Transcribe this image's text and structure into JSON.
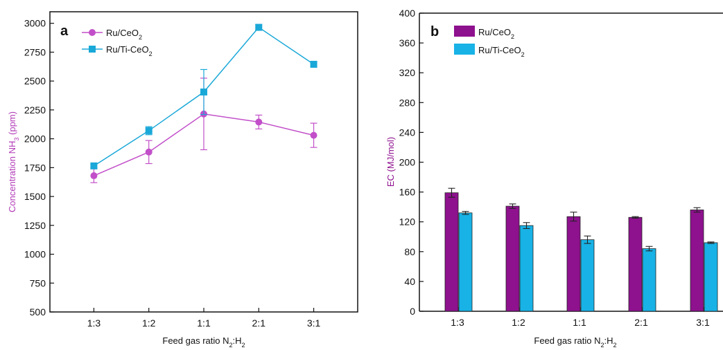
{
  "colors": {
    "magenta": "#c24fc9",
    "magenta_bar": "#8e118e",
    "cyan": "#1aa8d8",
    "cyan_bar": "#18b2e6",
    "axis": "#111111"
  },
  "chart_data": [
    {
      "type": "line",
      "panel_label": "a",
      "categories": [
        "1:3",
        "1:2",
        "1:1",
        "2:1",
        "3:1"
      ],
      "xlabel_parts": [
        "Feed gas ratio N",
        "2",
        ":H",
        "2"
      ],
      "ylabel_parts": [
        "Concentration NH",
        "3",
        " (ppm)"
      ],
      "ylim": [
        500,
        3100
      ],
      "yticks": [
        "500",
        "750",
        "1000",
        "1250",
        "1500",
        "1750",
        "2000",
        "2250",
        "2500",
        "2750",
        "3000"
      ],
      "ytick_values": [
        500,
        750,
        1000,
        1250,
        1500,
        1750,
        2000,
        2250,
        2500,
        2750,
        3000
      ],
      "legend_position": "top-left",
      "series": [
        {
          "name_parts": [
            "Ru/CeO",
            "2",
            ""
          ],
          "marker": "circle",
          "color": "#c24fc9",
          "values": [
            1680,
            1885,
            2215,
            2145,
            2030
          ],
          "errors": [
            60,
            100,
            310,
            60,
            105
          ]
        },
        {
          "name_parts": [
            "Ru/Ti-CeO",
            "2",
            ""
          ],
          "marker": "square",
          "color": "#1aa8d8",
          "values": [
            1765,
            2070,
            2405,
            2965,
            2645
          ],
          "errors": [
            15,
            35,
            195,
            25,
            25
          ]
        }
      ]
    },
    {
      "type": "bar",
      "panel_label": "b",
      "categories": [
        "1:3",
        "1:2",
        "1:1",
        "2:1",
        "3:1"
      ],
      "xlabel_parts": [
        "Feed gas ratio N",
        "2",
        ":H",
        "2"
      ],
      "ylabel_parts": [
        "EC (MJ/mol)"
      ],
      "ylim": [
        0,
        400
      ],
      "yticks": [
        "0",
        "40",
        "80",
        "120",
        "160",
        "200",
        "240",
        "280",
        "320",
        "360",
        "400"
      ],
      "ytick_values": [
        0,
        40,
        80,
        120,
        160,
        200,
        240,
        280,
        320,
        360,
        400
      ],
      "legend_position": "top-left",
      "series": [
        {
          "name_parts": [
            "Ru/CeO",
            "2",
            ""
          ],
          "color": "#8e118e",
          "values": [
            159,
            141,
            127,
            126,
            136
          ],
          "errors": [
            6,
            3,
            6,
            1,
            3
          ]
        },
        {
          "name_parts": [
            "Ru/Ti-CeO",
            "2",
            ""
          ],
          "color": "#18b2e6",
          "values": [
            132,
            115,
            96,
            84,
            92
          ],
          "errors": [
            2,
            4,
            5,
            3,
            1
          ]
        }
      ]
    }
  ]
}
